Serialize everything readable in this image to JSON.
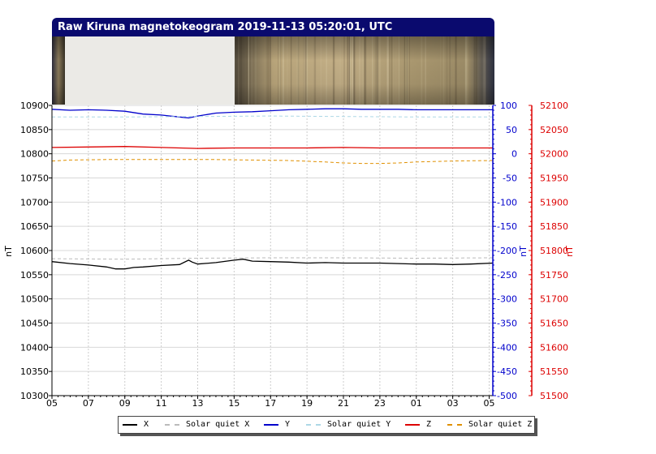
{
  "title": "Raw Kiruna magnetokeogram 2019-11-13 05:20:01, UTC",
  "colors": {
    "title_bg": "#0a0a6e",
    "x": "#000000",
    "solar_quiet_x": "#bbbbbb",
    "y": "#0000cc",
    "solar_quiet_y": "#add8e6",
    "z": "#dd0000",
    "solar_quiet_z": "#e09000"
  },
  "chart_data": {
    "type": "line",
    "x_tick_labels": [
      "05",
      "07",
      "09",
      "11",
      "13",
      "15",
      "17",
      "19",
      "21",
      "23",
      "01",
      "03",
      "05"
    ],
    "x_hours": [
      5,
      7,
      9,
      11,
      13,
      15,
      17,
      19,
      21,
      23,
      25,
      27,
      29
    ],
    "xlim": [
      5,
      29.2
    ],
    "grid": true,
    "axes": {
      "left": {
        "label": "nT",
        "ylim": [
          10300,
          10900
        ],
        "ticks": [
          "10300",
          "10350",
          "10400",
          "10450",
          "10500",
          "10550",
          "10600",
          "10650",
          "10700",
          "10750",
          "10800",
          "10850",
          "10900"
        ]
      },
      "right_blue": {
        "label": "nT",
        "ylim": [
          -500,
          100
        ],
        "ticks": [
          "-500",
          "-450",
          "-400",
          "-350",
          "-300",
          "-250",
          "-200",
          "-150",
          "-100",
          "-50",
          "0",
          "50",
          "100"
        ]
      },
      "right_red": {
        "label": "nT",
        "ylim": [
          51500,
          52100
        ],
        "ticks": [
          "51500",
          "51550",
          "51600",
          "51650",
          "51700",
          "51750",
          "51800",
          "51850",
          "51900",
          "51950",
          "52000",
          "52050",
          "52100"
        ]
      }
    },
    "series": [
      {
        "name": "X",
        "axis": "left",
        "style": "solid",
        "x": [
          5,
          6,
          7,
          8,
          8.5,
          9,
          9.5,
          10,
          11,
          12,
          12.5,
          12.7,
          13,
          14,
          15,
          15.5,
          16,
          17,
          18,
          19,
          20,
          21,
          22,
          23,
          24,
          25,
          26,
          27,
          28,
          29.2
        ],
        "y": [
          10577,
          10573,
          10570,
          10566,
          10562,
          10562,
          10565,
          10566,
          10569,
          10571,
          10580,
          10576,
          10572,
          10575,
          10580,
          10582,
          10578,
          10577,
          10576,
          10574,
          10575,
          10574,
          10574,
          10574,
          10573,
          10572,
          10572,
          10571,
          10572,
          10574
        ]
      },
      {
        "name": "Solar quiet X",
        "axis": "left",
        "style": "dashed",
        "x": [
          5,
          9,
          13,
          17,
          21,
          25,
          29.2
        ],
        "y": [
          10583,
          10582,
          10584,
          10585,
          10585,
          10584,
          10585
        ]
      },
      {
        "name": "Y",
        "axis": "right_blue",
        "style": "solid",
        "x": [
          5,
          6,
          7,
          8,
          9,
          10,
          11,
          11.5,
          12,
          12.5,
          13,
          14,
          15,
          16,
          17,
          18,
          19,
          20,
          21,
          22,
          23,
          24,
          25,
          26,
          27,
          28,
          29.2
        ],
        "y": [
          92,
          90,
          91,
          90,
          88,
          82,
          80,
          78,
          76,
          74,
          78,
          84,
          86,
          87,
          89,
          91,
          92,
          93,
          93,
          92,
          92,
          92,
          91,
          91,
          91,
          91,
          91
        ]
      },
      {
        "name": "Solar quiet Y",
        "axis": "right_blue",
        "style": "dashed",
        "x": [
          5,
          9,
          13,
          17,
          21,
          25,
          29.2
        ],
        "y": [
          76,
          76,
          77,
          78,
          77,
          76,
          76
        ]
      },
      {
        "name": "Z",
        "axis": "right_red",
        "style": "solid",
        "x": [
          5,
          7,
          9,
          11,
          12,
          13,
          15,
          17,
          19,
          21,
          23,
          25,
          27,
          29.2
        ],
        "y": [
          52013,
          52014,
          52015,
          52013,
          52012,
          52011,
          52012,
          52012,
          52012,
          52013,
          52012,
          52012,
          52012,
          52012
        ]
      },
      {
        "name": "Solar quiet Z",
        "axis": "right_red",
        "style": "dashed",
        "x": [
          5,
          6,
          8,
          10,
          12,
          14,
          16,
          18,
          20,
          21,
          22,
          23,
          24,
          25,
          27,
          29.2
        ],
        "y": [
          51985,
          51987,
          51988,
          51988,
          51988,
          51988,
          51987,
          51986,
          51983,
          51981,
          51980,
          51980,
          51981,
          51983,
          51985,
          51986
        ]
      }
    ]
  },
  "legend": [
    {
      "label": "X",
      "color_key": "x",
      "style": "solid"
    },
    {
      "label": "Solar quiet X",
      "color_key": "solar_quiet_x",
      "style": "dashed"
    },
    {
      "label": "Y",
      "color_key": "y",
      "style": "solid"
    },
    {
      "label": "Solar quiet Y",
      "color_key": "solar_quiet_y",
      "style": "dashed"
    },
    {
      "label": "Z",
      "color_key": "z",
      "style": "solid"
    },
    {
      "label": "Solar quiet Z",
      "color_key": "solar_quiet_z",
      "style": "dashed"
    }
  ]
}
